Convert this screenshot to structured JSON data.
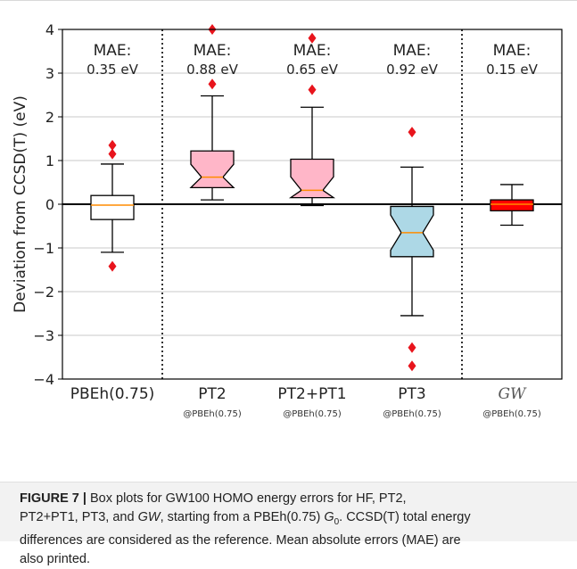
{
  "chart_data": {
    "type": "box",
    "ylabel": "Deviation from CCSD(T) (eV)",
    "ylim": [
      -4,
      4
    ],
    "yticks": [
      -4,
      -3,
      -2,
      -1,
      0,
      1,
      2,
      3,
      4
    ],
    "grid": true,
    "categories": [
      {
        "label": "PBEh(0.75)",
        "sublabel": "",
        "mae": "MAE:",
        "mae_value": "0.35 eV",
        "italic": false,
        "color": "#ffffff",
        "notched": false,
        "whisker_low": -1.1,
        "q1": -0.35,
        "median": -0.02,
        "q3": 0.2,
        "whisker_high": 0.92,
        "fliers": [
          1.35,
          1.15,
          -1.42
        ]
      },
      {
        "label": "PT2",
        "sublabel": "@PBEh(0.75)",
        "mae": "MAE:",
        "mae_value": "0.88 eV",
        "italic": false,
        "color": "#ffb6c8",
        "notched": true,
        "whisker_low": 0.1,
        "q1": 0.38,
        "median": 0.62,
        "q3": 1.22,
        "whisker_high": 2.48,
        "fliers": [
          2.75,
          4.0
        ]
      },
      {
        "label": "PT2+PT1",
        "sublabel": "@PBEh(0.75)",
        "mae": "MAE:",
        "mae_value": "0.65 eV",
        "italic": false,
        "color": "#ffb6c8",
        "notched": true,
        "whisker_low": -0.03,
        "q1": 0.15,
        "median": 0.32,
        "q3": 1.03,
        "whisker_high": 2.22,
        "fliers": [
          2.62,
          3.8
        ]
      },
      {
        "label": "PT3",
        "sublabel": "@PBEh(0.75)",
        "mae": "MAE:",
        "mae_value": "0.92 eV",
        "italic": false,
        "color": "#add8e6",
        "notched": true,
        "whisker_low": -2.55,
        "q1": -1.2,
        "median": -0.65,
        "q3": -0.05,
        "whisker_high": 0.85,
        "fliers": [
          1.65,
          -3.28,
          -3.7
        ]
      },
      {
        "label": "GW",
        "sublabel": "@PBEh(0.75)",
        "mae": "MAE:",
        "mae_value": "0.15 eV",
        "italic": true,
        "color": "#ff0000",
        "notched": false,
        "whisker_low": -0.48,
        "q1": -0.15,
        "median": 0.0,
        "q3": 0.1,
        "whisker_high": 0.45,
        "fliers": []
      }
    ],
    "separators_after": [
      0,
      3
    ],
    "colors": {
      "median": "#ff8c00",
      "flier": "#e8141c",
      "zero_line": "#000000",
      "grid": "#c8c8c8"
    }
  },
  "caption": {
    "label": "FIGURE 7 |",
    "text_1": " Box plots for GW100 HOMO energy errors for HF, PT2,",
    "text_2": "PT2+PT1, PT3, and ",
    "gw": "GW",
    "text_3": ", starting from a PBEh(0.75) ",
    "g": "G",
    "g_sub": "0",
    "text_4": ". CCSD(T) total energy",
    "line_3": "differences are considered as the reference. Mean absolute errors (MAE) are",
    "line_4": "also printed."
  }
}
